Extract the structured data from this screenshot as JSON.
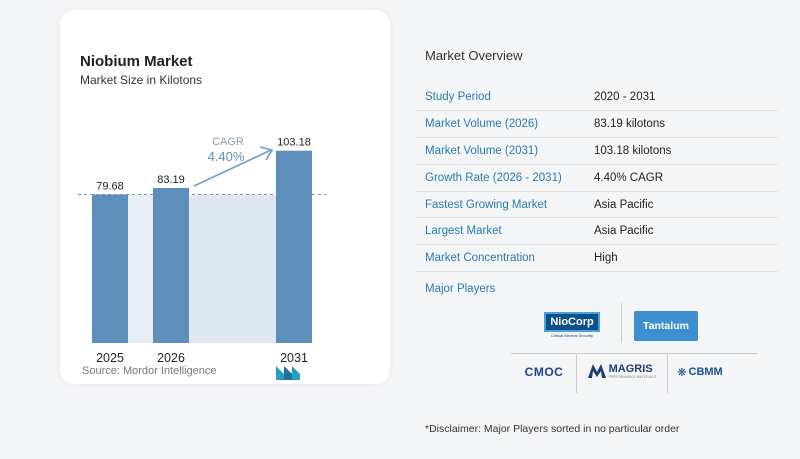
{
  "chart_data": {
    "type": "bar",
    "title": "Niobium Market",
    "subtitle": "Market Size in Kilotons",
    "categories": [
      "2025",
      "2026",
      "2031"
    ],
    "values": [
      79.68,
      83.19,
      103.18
    ],
    "value_labels": [
      "79.68",
      "83.19",
      "103.18"
    ],
    "annotation": {
      "label": "CAGR",
      "value": "4.40%"
    },
    "ylim": [
      0,
      110
    ],
    "bar_color": "#5e8fbb",
    "reference_line": "dashed at first bar value",
    "source": "Source: Mordor Intelligence"
  },
  "overview": {
    "title": "Market Overview",
    "rows": [
      {
        "key": "Study Period",
        "value": "2020 - 2031"
      },
      {
        "key": "Market Volume (2026)",
        "value": "83.19 kilotons"
      },
      {
        "key": "Market Volume (2031)",
        "value": "103.18 kilotons"
      },
      {
        "key": "Growth Rate (2026 - 2031)",
        "value": "4.40% CAGR"
      },
      {
        "key": "Fastest Growing Market",
        "value": "Asia Pacific"
      },
      {
        "key": "Largest Market",
        "value": "Asia Pacific"
      },
      {
        "key": "Market Concentration",
        "value": "High"
      }
    ],
    "players_title": "Major Players",
    "players": {
      "niocorp": {
        "name": "NioCorp",
        "tagline": "Critical Mineral Security"
      },
      "tantalum": {
        "name": "Tantalum"
      },
      "cmoc": {
        "name": "CMOC"
      },
      "magris": {
        "name": "MAGRIS",
        "tagline": "PERFORMANCE MATERIALS"
      },
      "cbmm": {
        "name": "CBMM"
      }
    },
    "disclaimer": "*Disclaimer: Major Players sorted in no particular order"
  },
  "colors": {
    "accent": "#2a7ab0",
    "bar": "#5e8fbb",
    "band": "#dfe8f1",
    "arrow": "#6d9fc4"
  }
}
